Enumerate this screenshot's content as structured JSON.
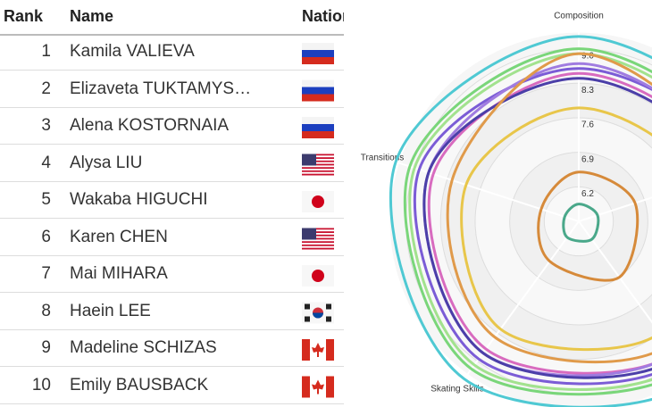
{
  "table": {
    "headers": [
      "Rank",
      "Name",
      "Nation"
    ],
    "rows": [
      [
        "1",
        "Kamila VALIEVA"
      ],
      [
        "2",
        "Elizaveta TUKTAMYS…"
      ],
      [
        "3",
        "Alena KOSTORNAIA"
      ],
      [
        "4",
        "Alysa LIU"
      ],
      [
        "5",
        "Wakaba HIGUCHI"
      ],
      [
        "6",
        "Karen CHEN"
      ],
      [
        "7",
        "Mai MIHARA"
      ],
      [
        "8",
        "Haein LEE"
      ],
      [
        "9",
        "Madeline SCHIZAS"
      ],
      [
        "10",
        "Emily BAUSBACK"
      ]
    ]
  },
  "chart_data": {
    "type": "radar",
    "categories": [
      "Composition",
      null,
      null,
      "Skating Skills",
      "Transitions"
    ],
    "ylim": [
      5.5,
      9.5
    ],
    "yticks": [
      {
        "value": 6.2,
        "label": "6.2"
      },
      {
        "value": 6.9,
        "label": "6.9"
      },
      {
        "value": 7.6,
        "label": "7.6"
      },
      {
        "value": 8.3,
        "label": "8.3"
      },
      {
        "value": 9,
        "label": "9.0"
      }
    ],
    "series": [
      {
        "color": "#4fc9d3",
        "values": [
          9.25,
          9.4,
          9.5,
          9.45,
          9.4
        ]
      },
      {
        "color": "#7ad67a",
        "values": [
          9.0,
          9.1,
          9.2,
          9.2,
          9.1
        ]
      },
      {
        "color": "#a2e28e",
        "values": [
          8.9,
          9.0,
          9.1,
          9.1,
          9.0
        ]
      },
      {
        "color": "#7b5cd6",
        "values": [
          8.6,
          8.9,
          9.0,
          8.95,
          8.9
        ]
      },
      {
        "color": "#d86bbf",
        "values": [
          8.5,
          8.7,
          8.8,
          8.7,
          8.6
        ]
      },
      {
        "color": "#a07ce0",
        "values": [
          8.7,
          8.8,
          8.8,
          8.8,
          8.7
        ]
      },
      {
        "color": "#4b3fa8",
        "values": [
          8.4,
          8.6,
          8.9,
          8.8,
          8.7
        ]
      },
      {
        "color": "#e09a4a",
        "values": [
          8.9,
          8.7,
          8.6,
          8.4,
          8.2
        ]
      },
      {
        "color": "#e8c64a",
        "values": [
          7.8,
          8.0,
          8.3,
          8.2,
          7.9
        ]
      },
      {
        "color": "#d68a3a",
        "values": [
          6.5,
          6.7,
          6.9,
          6.5,
          6.3
        ]
      },
      {
        "color": "#4aa88a",
        "values": [
          5.85,
          5.9,
          5.95,
          5.9,
          5.8
        ]
      }
    ]
  }
}
